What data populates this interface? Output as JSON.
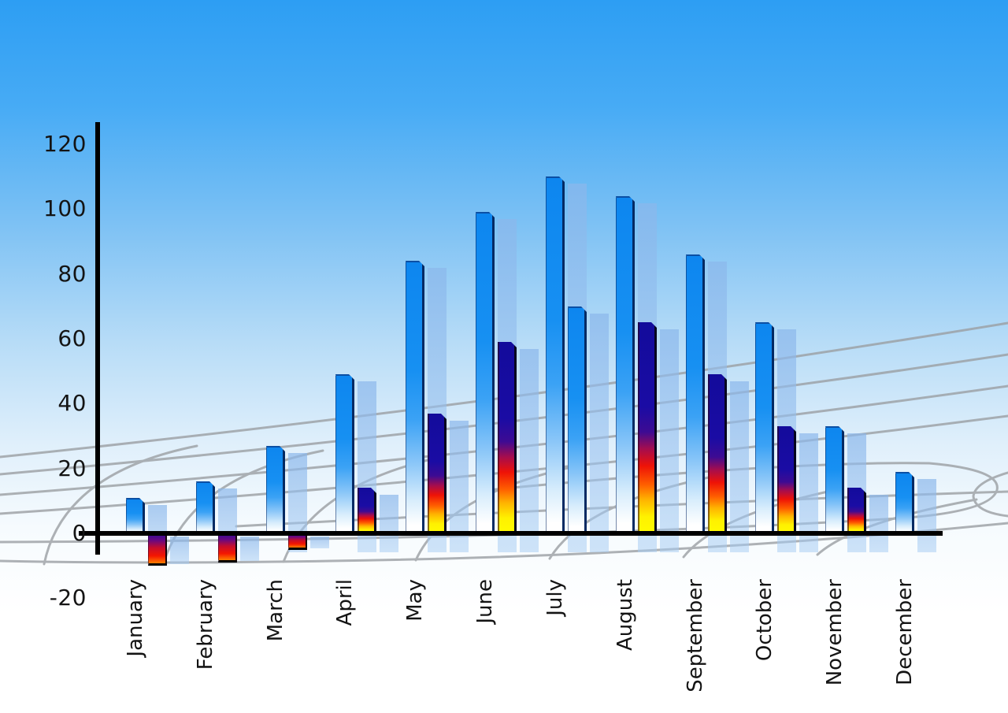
{
  "chart_data": {
    "type": "bar",
    "title": "",
    "xlabel": "",
    "ylabel": "",
    "categories": [
      "January",
      "February",
      "March",
      "April",
      "May",
      "June",
      "July",
      "August",
      "September",
      "October",
      "November",
      "December"
    ],
    "series": [
      {
        "name": "primary-blue-bars",
        "values": [
          11,
          16,
          27,
          49,
          84,
          99,
          110,
          104,
          86,
          65,
          33,
          19
        ]
      },
      {
        "name": "secondary-bars",
        "values": [
          -10,
          -9,
          -5,
          14,
          37,
          59,
          70,
          65,
          49,
          33,
          14,
          0
        ],
        "styles": [
          "negative",
          "negative",
          "negative",
          "rainbow",
          "rainbow",
          "rainbow",
          "blue",
          "rainbow",
          "rainbow",
          "rainbow",
          "rainbow",
          "none"
        ]
      }
    ],
    "y_axis": {
      "ticks": [
        120,
        100,
        80,
        60,
        40,
        20,
        0,
        -20
      ],
      "min": -20,
      "max": 120
    },
    "legend": "none",
    "grid": "perspective-net-background",
    "colors": {
      "sky_top": "#2d9ef3",
      "sky_bottom": "#ffffff",
      "bar_blue": "#1790f2",
      "bar_rainbow_top": "#130b9b",
      "bar_rainbow_red": "#ee1207",
      "bar_rainbow_yellow": "#fff100",
      "bar_shadow": "#8bb7eb",
      "grid_line": "#9b9fa3",
      "axis": "#000000",
      "label_text": "#141414"
    }
  }
}
